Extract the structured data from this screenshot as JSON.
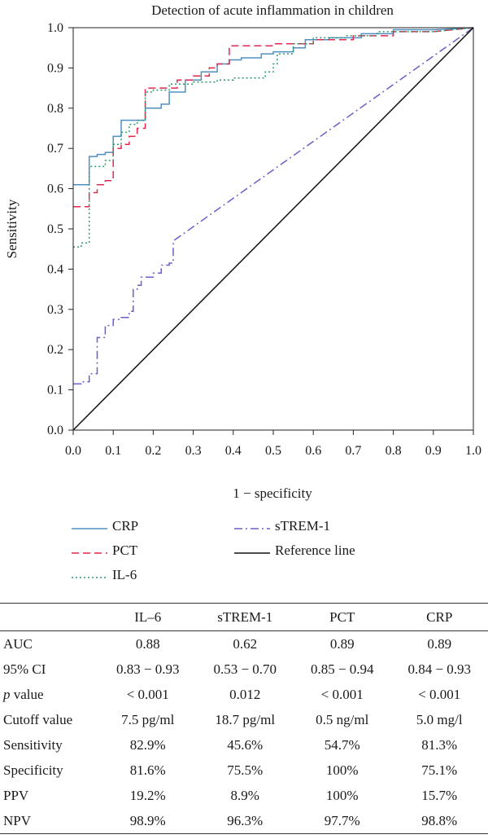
{
  "chart_data": {
    "type": "line",
    "title": "Detection of acute inflammation in children",
    "xlabel": "1 − specificity",
    "ylabel": "Sensitivity",
    "xlim": [
      0,
      1
    ],
    "ylim": [
      0,
      1
    ],
    "xticks": [
      "0.0",
      "0.1",
      "0.2",
      "0.3",
      "0.4",
      "0.5",
      "0.6",
      "0.7",
      "0.8",
      "0.9",
      "1.0"
    ],
    "yticks": [
      "0.0",
      "0.1",
      "0.2",
      "0.3",
      "0.4",
      "0.5",
      "0.6",
      "0.7",
      "0.8",
      "0.9",
      "1.0"
    ],
    "grid": false,
    "legend_position": "bottom",
    "series": [
      {
        "name": "CRP",
        "color": "#4f8fc0",
        "dash": "solid",
        "points": [
          [
            0,
            0.61
          ],
          [
            0.04,
            0.61
          ],
          [
            0.04,
            0.68
          ],
          [
            0.06,
            0.68
          ],
          [
            0.06,
            0.685
          ],
          [
            0.08,
            0.685
          ],
          [
            0.08,
            0.69
          ],
          [
            0.1,
            0.69
          ],
          [
            0.1,
            0.73
          ],
          [
            0.12,
            0.73
          ],
          [
            0.12,
            0.77
          ],
          [
            0.18,
            0.77
          ],
          [
            0.18,
            0.8
          ],
          [
            0.22,
            0.8
          ],
          [
            0.22,
            0.81
          ],
          [
            0.24,
            0.81
          ],
          [
            0.24,
            0.84
          ],
          [
            0.28,
            0.84
          ],
          [
            0.28,
            0.87
          ],
          [
            0.32,
            0.87
          ],
          [
            0.32,
            0.89
          ],
          [
            0.36,
            0.89
          ],
          [
            0.36,
            0.91
          ],
          [
            0.39,
            0.91
          ],
          [
            0.39,
            0.92
          ],
          [
            0.42,
            0.92
          ],
          [
            0.42,
            0.925
          ],
          [
            0.47,
            0.925
          ],
          [
            0.47,
            0.935
          ],
          [
            0.5,
            0.935
          ],
          [
            0.5,
            0.94
          ],
          [
            0.55,
            0.94
          ],
          [
            0.55,
            0.95
          ],
          [
            0.58,
            0.95
          ],
          [
            0.58,
            0.97
          ],
          [
            0.64,
            0.97
          ],
          [
            0.64,
            0.975
          ],
          [
            0.72,
            0.975
          ],
          [
            0.72,
            0.985
          ],
          [
            0.8,
            0.985
          ],
          [
            0.8,
            0.995
          ],
          [
            0.9,
            0.995
          ],
          [
            1,
            1
          ]
        ]
      },
      {
        "name": "PCT",
        "color": "#e0294f",
        "dash": "long",
        "points": [
          [
            0,
            0.555
          ],
          [
            0.04,
            0.555
          ],
          [
            0.04,
            0.59
          ],
          [
            0.06,
            0.59
          ],
          [
            0.06,
            0.61
          ],
          [
            0.08,
            0.61
          ],
          [
            0.08,
            0.62
          ],
          [
            0.1,
            0.62
          ],
          [
            0.1,
            0.7
          ],
          [
            0.12,
            0.7
          ],
          [
            0.12,
            0.71
          ],
          [
            0.14,
            0.71
          ],
          [
            0.14,
            0.73
          ],
          [
            0.16,
            0.73
          ],
          [
            0.16,
            0.75
          ],
          [
            0.18,
            0.75
          ],
          [
            0.18,
            0.85
          ],
          [
            0.26,
            0.85
          ],
          [
            0.26,
            0.87
          ],
          [
            0.3,
            0.87
          ],
          [
            0.3,
            0.88
          ],
          [
            0.34,
            0.88
          ],
          [
            0.34,
            0.9
          ],
          [
            0.36,
            0.9
          ],
          [
            0.36,
            0.91
          ],
          [
            0.39,
            0.91
          ],
          [
            0.39,
            0.955
          ],
          [
            0.5,
            0.955
          ],
          [
            0.5,
            0.96
          ],
          [
            0.6,
            0.96
          ],
          [
            0.6,
            0.97
          ],
          [
            0.7,
            0.97
          ],
          [
            0.7,
            0.98
          ],
          [
            0.8,
            0.98
          ],
          [
            0.8,
            0.99
          ],
          [
            0.9,
            0.99
          ],
          [
            1,
            1
          ]
        ]
      },
      {
        "name": "IL-6",
        "color": "#2a9a6a",
        "dash": "dotted",
        "points": [
          [
            0,
            0.455
          ],
          [
            0.02,
            0.455
          ],
          [
            0.02,
            0.465
          ],
          [
            0.04,
            0.465
          ],
          [
            0.04,
            0.655
          ],
          [
            0.08,
            0.655
          ],
          [
            0.08,
            0.67
          ],
          [
            0.1,
            0.67
          ],
          [
            0.1,
            0.71
          ],
          [
            0.12,
            0.71
          ],
          [
            0.12,
            0.74
          ],
          [
            0.14,
            0.74
          ],
          [
            0.14,
            0.76
          ],
          [
            0.16,
            0.76
          ],
          [
            0.16,
            0.77
          ],
          [
            0.18,
            0.77
          ],
          [
            0.18,
            0.84
          ],
          [
            0.2,
            0.84
          ],
          [
            0.2,
            0.845
          ],
          [
            0.24,
            0.845
          ],
          [
            0.24,
            0.86
          ],
          [
            0.3,
            0.86
          ],
          [
            0.3,
            0.865
          ],
          [
            0.36,
            0.865
          ],
          [
            0.36,
            0.87
          ],
          [
            0.4,
            0.87
          ],
          [
            0.4,
            0.875
          ],
          [
            0.48,
            0.875
          ],
          [
            0.48,
            0.89
          ],
          [
            0.5,
            0.89
          ],
          [
            0.5,
            0.91
          ],
          [
            0.51,
            0.91
          ],
          [
            0.51,
            0.935
          ],
          [
            0.55,
            0.935
          ],
          [
            0.55,
            0.96
          ],
          [
            0.6,
            0.96
          ],
          [
            0.6,
            0.975
          ],
          [
            0.68,
            0.975
          ],
          [
            0.68,
            0.98
          ],
          [
            0.76,
            0.98
          ],
          [
            0.76,
            0.99
          ],
          [
            0.9,
            0.99
          ],
          [
            1,
            1
          ]
        ]
      },
      {
        "name": "sTREM-1",
        "color": "#6a5fc8",
        "dash": "dashdot",
        "points": [
          [
            0,
            0.115
          ],
          [
            0.02,
            0.115
          ],
          [
            0.02,
            0.12
          ],
          [
            0.04,
            0.12
          ],
          [
            0.04,
            0.14
          ],
          [
            0.06,
            0.14
          ],
          [
            0.06,
            0.23
          ],
          [
            0.08,
            0.23
          ],
          [
            0.08,
            0.26
          ],
          [
            0.1,
            0.26
          ],
          [
            0.1,
            0.275
          ],
          [
            0.12,
            0.275
          ],
          [
            0.12,
            0.28
          ],
          [
            0.14,
            0.28
          ],
          [
            0.14,
            0.295
          ],
          [
            0.15,
            0.295
          ],
          [
            0.15,
            0.35
          ],
          [
            0.16,
            0.35
          ],
          [
            0.16,
            0.36
          ],
          [
            0.17,
            0.36
          ],
          [
            0.17,
            0.38
          ],
          [
            0.2,
            0.38
          ],
          [
            0.2,
            0.39
          ],
          [
            0.22,
            0.39
          ],
          [
            0.22,
            0.41
          ],
          [
            0.24,
            0.41
          ],
          [
            0.24,
            0.415
          ],
          [
            0.25,
            0.415
          ],
          [
            0.25,
            0.47
          ],
          [
            1,
            1
          ]
        ]
      },
      {
        "name": "Reference line",
        "color": "#111111",
        "dash": "solid",
        "points": [
          [
            0,
            0
          ],
          [
            1,
            1
          ]
        ]
      }
    ]
  },
  "table": {
    "columns": [
      "",
      "IL–6",
      "sTREM-1",
      "PCT",
      "CRP"
    ],
    "rows": [
      {
        "label": "AUC",
        "values": [
          "0.88",
          "0.62",
          "0.89",
          "0.89"
        ]
      },
      {
        "label": "95% CI",
        "values": [
          "0.83 − 0.93",
          "0.53 − 0.70",
          "0.85 − 0.94",
          "0.84 − 0.93"
        ]
      },
      {
        "label": "p value",
        "values": [
          "< 0.001",
          "0.012",
          "< 0.001",
          "< 0.001"
        ]
      },
      {
        "label": "Cutoff value",
        "values": [
          "7.5 pg/ml",
          "18.7 pg/ml",
          "0.5 ng/ml",
          "5.0 mg/l"
        ]
      },
      {
        "label": "Sensitivity",
        "values": [
          "82.9%",
          "45.6%",
          "54.7%",
          "81.3%"
        ]
      },
      {
        "label": "Specificity",
        "values": [
          "81.6%",
          "75.5%",
          "100%",
          "75.1%"
        ]
      },
      {
        "label": "PPV",
        "values": [
          "19.2%",
          "8.9%",
          "100%",
          "15.7%"
        ]
      },
      {
        "label": "NPV",
        "values": [
          "98.9%",
          "96.3%",
          "97.7%",
          "98.8%"
        ]
      }
    ]
  }
}
